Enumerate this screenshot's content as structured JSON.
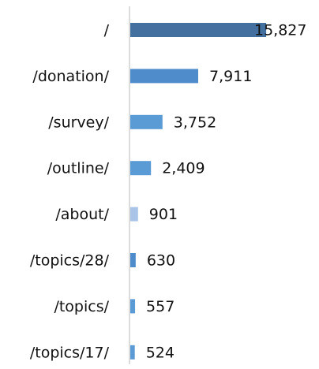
{
  "chart_data": {
    "type": "bar",
    "orientation": "horizontal",
    "categories": [
      "/",
      "/donation/",
      "/survey/",
      "/outline/",
      "/about/",
      "/topics/28/",
      "/topics/",
      "/topics/17/"
    ],
    "values": [
      15827,
      7911,
      3752,
      2409,
      901,
      630,
      557,
      524
    ],
    "value_labels": [
      "15,827",
      "7,911",
      "3,752",
      "2,409",
      "901",
      "630",
      "557",
      "524"
    ],
    "colors": [
      "#44709f",
      "#4f8ccb",
      "#5b9bd5",
      "#5b9bd5",
      "#a9c4e6",
      "#4f8ccb",
      "#5b9bd5",
      "#5b9bd5"
    ],
    "xlim": [
      0,
      16000
    ]
  }
}
